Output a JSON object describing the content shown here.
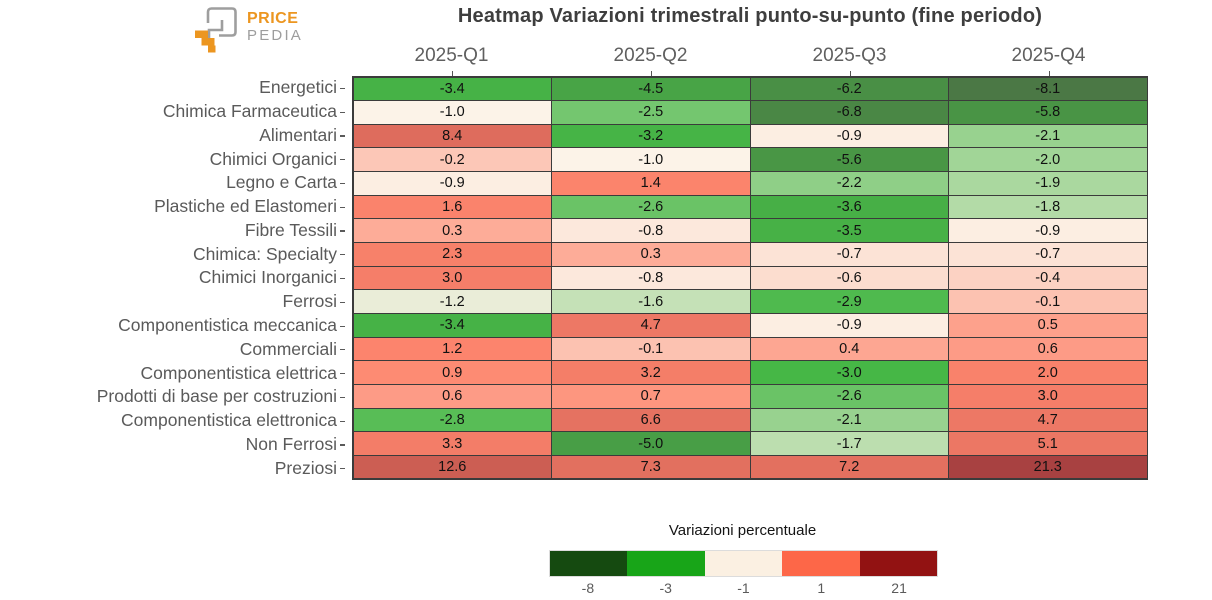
{
  "logo": {
    "line1": "PRICE",
    "line2": "PEDIA"
  },
  "title": "Heatmap Variazioni trimestrali punto-su-punto (fine periodo)",
  "chart_data": {
    "type": "heatmap",
    "columns": [
      "2025-Q1",
      "2025-Q2",
      "2025-Q3",
      "2025-Q4"
    ],
    "rows": [
      "Energetici",
      "Chimica Farmaceutica",
      "Alimentari",
      "Chimici Organici",
      "Legno e Carta",
      "Plastiche ed Elastomeri",
      "Fibre Tessili",
      "Chimica: Specialty",
      "Chimici Inorganici",
      "Ferrosi",
      "Componentistica meccanica",
      "Commerciali",
      "Componentistica elettrica",
      "Prodotti di base per costruzioni",
      "Componentistica elettronica",
      "Non Ferrosi",
      "Preziosi"
    ],
    "values": [
      [
        -3.4,
        -4.5,
        -6.2,
        -8.1
      ],
      [
        -1.0,
        -2.5,
        -6.8,
        -5.8
      ],
      [
        8.4,
        -3.2,
        -0.9,
        -2.1
      ],
      [
        -0.2,
        -1.0,
        -5.6,
        -2.0
      ],
      [
        -0.9,
        1.4,
        -2.2,
        -1.9
      ],
      [
        1.6,
        -2.6,
        -3.6,
        -1.8
      ],
      [
        0.3,
        -0.8,
        -3.5,
        -0.9
      ],
      [
        2.3,
        0.3,
        -0.7,
        -0.7
      ],
      [
        3.0,
        -0.8,
        -0.6,
        -0.4
      ],
      [
        -1.2,
        -1.6,
        -2.9,
        -0.1
      ],
      [
        -3.4,
        4.7,
        -0.9,
        0.5
      ],
      [
        1.2,
        -0.1,
        0.4,
        0.6
      ],
      [
        0.9,
        3.2,
        -3.0,
        2.0
      ],
      [
        0.6,
        0.7,
        -2.6,
        3.0
      ],
      [
        -2.8,
        6.6,
        -2.1,
        4.7
      ],
      [
        3.3,
        -5.0,
        -1.7,
        5.1
      ],
      [
        12.6,
        7.3,
        7.2,
        21.3
      ]
    ],
    "value_decimals": 1,
    "colorbar": {
      "title": "Variazioni percentuale",
      "tick_labels": [
        "-8",
        "-3",
        "-1",
        "1",
        "21"
      ],
      "legend_colors": [
        "#154a10",
        "#18a518",
        "#fbf0e2",
        "#fd6748",
        "#921212"
      ]
    },
    "colorscale_anchors": {
      "values": [
        -8,
        -3,
        -1,
        1,
        21
      ],
      "cell_colors": [
        "#4b7845",
        "#46b746",
        "#fcf3e8",
        "#fd856d",
        "#a84141"
      ]
    }
  },
  "colors": {
    "accent_orange": "#ec9620",
    "logo_gray": "#9d9d9d",
    "title_gray": "#3e3e3e",
    "axis_label_gray": "#5a5a5a",
    "grid_line": "#3b3b3b"
  }
}
